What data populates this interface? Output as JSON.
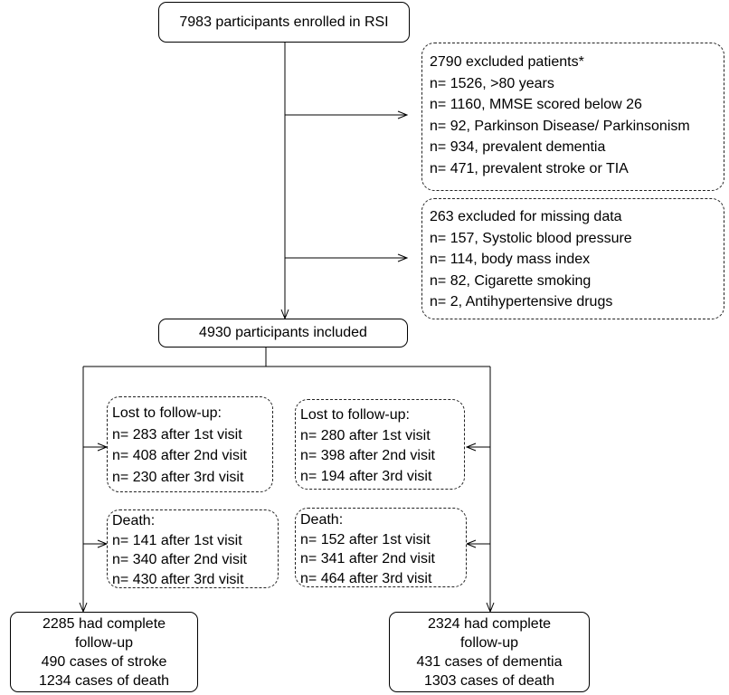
{
  "enrolled": {
    "text": "7983 participants enrolled in RSI"
  },
  "excluded_patients": {
    "title": "2790 excluded patients*",
    "items": [
      "n= 1526, >80 years",
      "n= 1160, MMSE scored below 26",
      "n= 92, Parkinson Disease/ Parkinsonism",
      "n= 934, prevalent dementia",
      "n= 471, prevalent stroke or TIA"
    ]
  },
  "excluded_missing": {
    "title": "263 excluded for missing data",
    "items": [
      "n= 157, Systolic blood pressure",
      "n= 114, body mass index",
      "n= 82, Cigarette smoking",
      "n= 2, Antihypertensive drugs"
    ]
  },
  "included": {
    "text": "4930 participants included"
  },
  "left_branch": {
    "lost": {
      "title": "Lost to follow-up:",
      "items": [
        "n= 283 after 1st visit",
        "n= 408 after 2nd visit",
        "n= 230 after 3rd visit"
      ]
    },
    "death": {
      "title": "Death:",
      "items": [
        "n= 141 after 1st visit",
        "n= 340 after 2nd visit",
        "n= 430 after 3rd visit"
      ]
    },
    "outcome": [
      "2285 had complete",
      "follow-up",
      "490 cases of stroke",
      "1234 cases of death"
    ]
  },
  "right_branch": {
    "lost": {
      "title": "Lost to follow-up:",
      "items": [
        "n= 280 after 1st visit",
        "n= 398 after 2nd visit",
        "n= 194 after 3rd visit"
      ]
    },
    "death": {
      "title": "Death:",
      "items": [
        "n= 152 after 1st visit",
        "n= 341 after 2nd visit",
        "n= 464 after 3rd visit"
      ]
    },
    "outcome": [
      "2324 had complete",
      "follow-up",
      "431 cases of dementia",
      "1303 cases of death"
    ]
  }
}
